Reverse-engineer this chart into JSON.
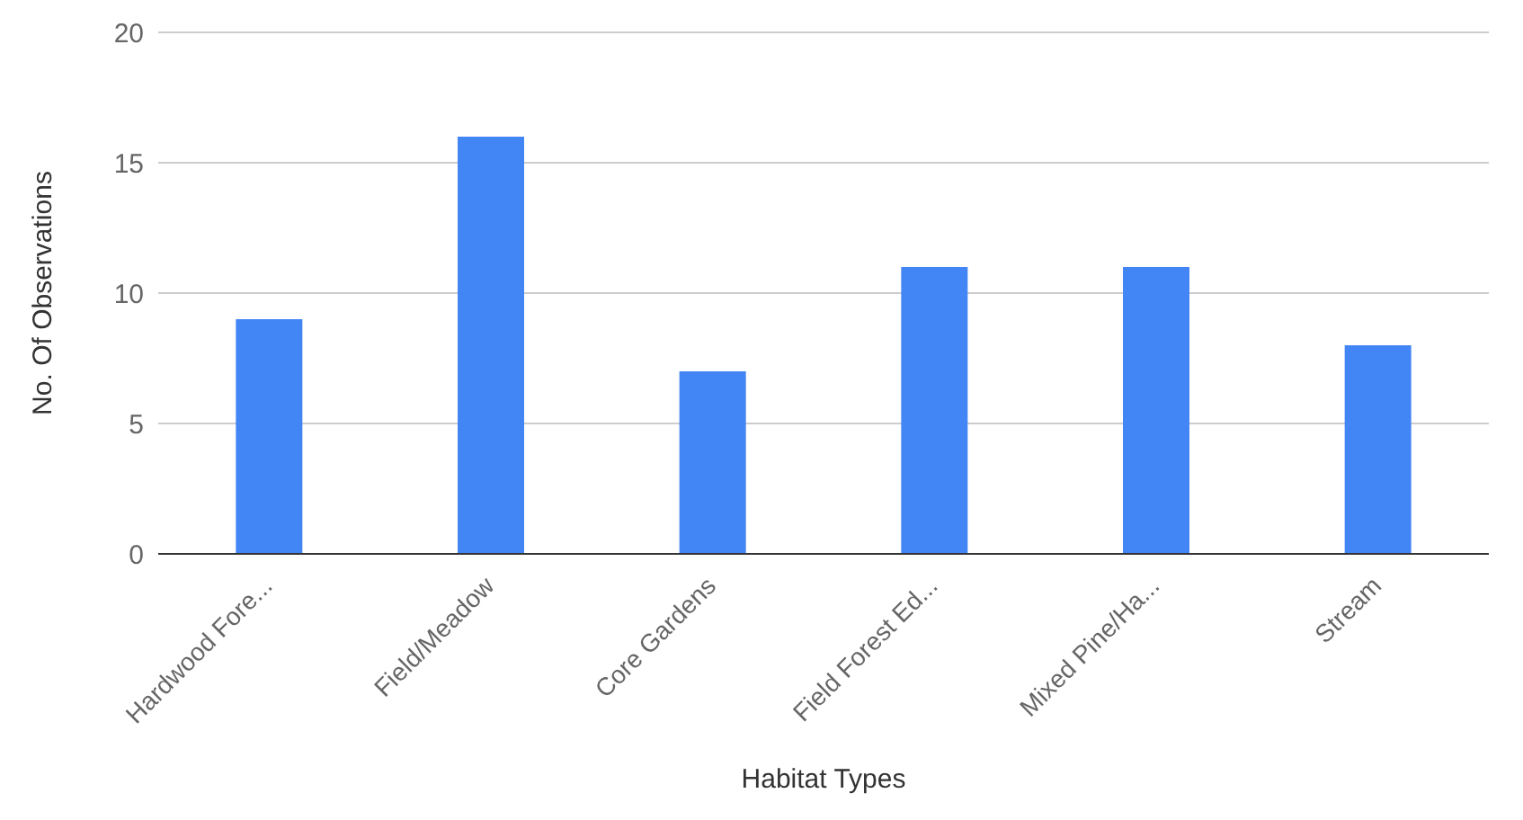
{
  "chart_data": {
    "type": "bar",
    "xlabel": "Habitat Types",
    "ylabel": "No. Of Observations",
    "categories": [
      "Hardwood Fore...",
      "Field/Meadow",
      "Core Gardens",
      "Field Forest Ed...",
      "Mixed Pine/Ha...",
      "Stream"
    ],
    "values": [
      9,
      16,
      7,
      11,
      11,
      8
    ],
    "color": "#4285f4",
    "ylim": [
      0,
      20
    ],
    "yticks": [
      0,
      5,
      10,
      15,
      20
    ],
    "grid": "y"
  }
}
